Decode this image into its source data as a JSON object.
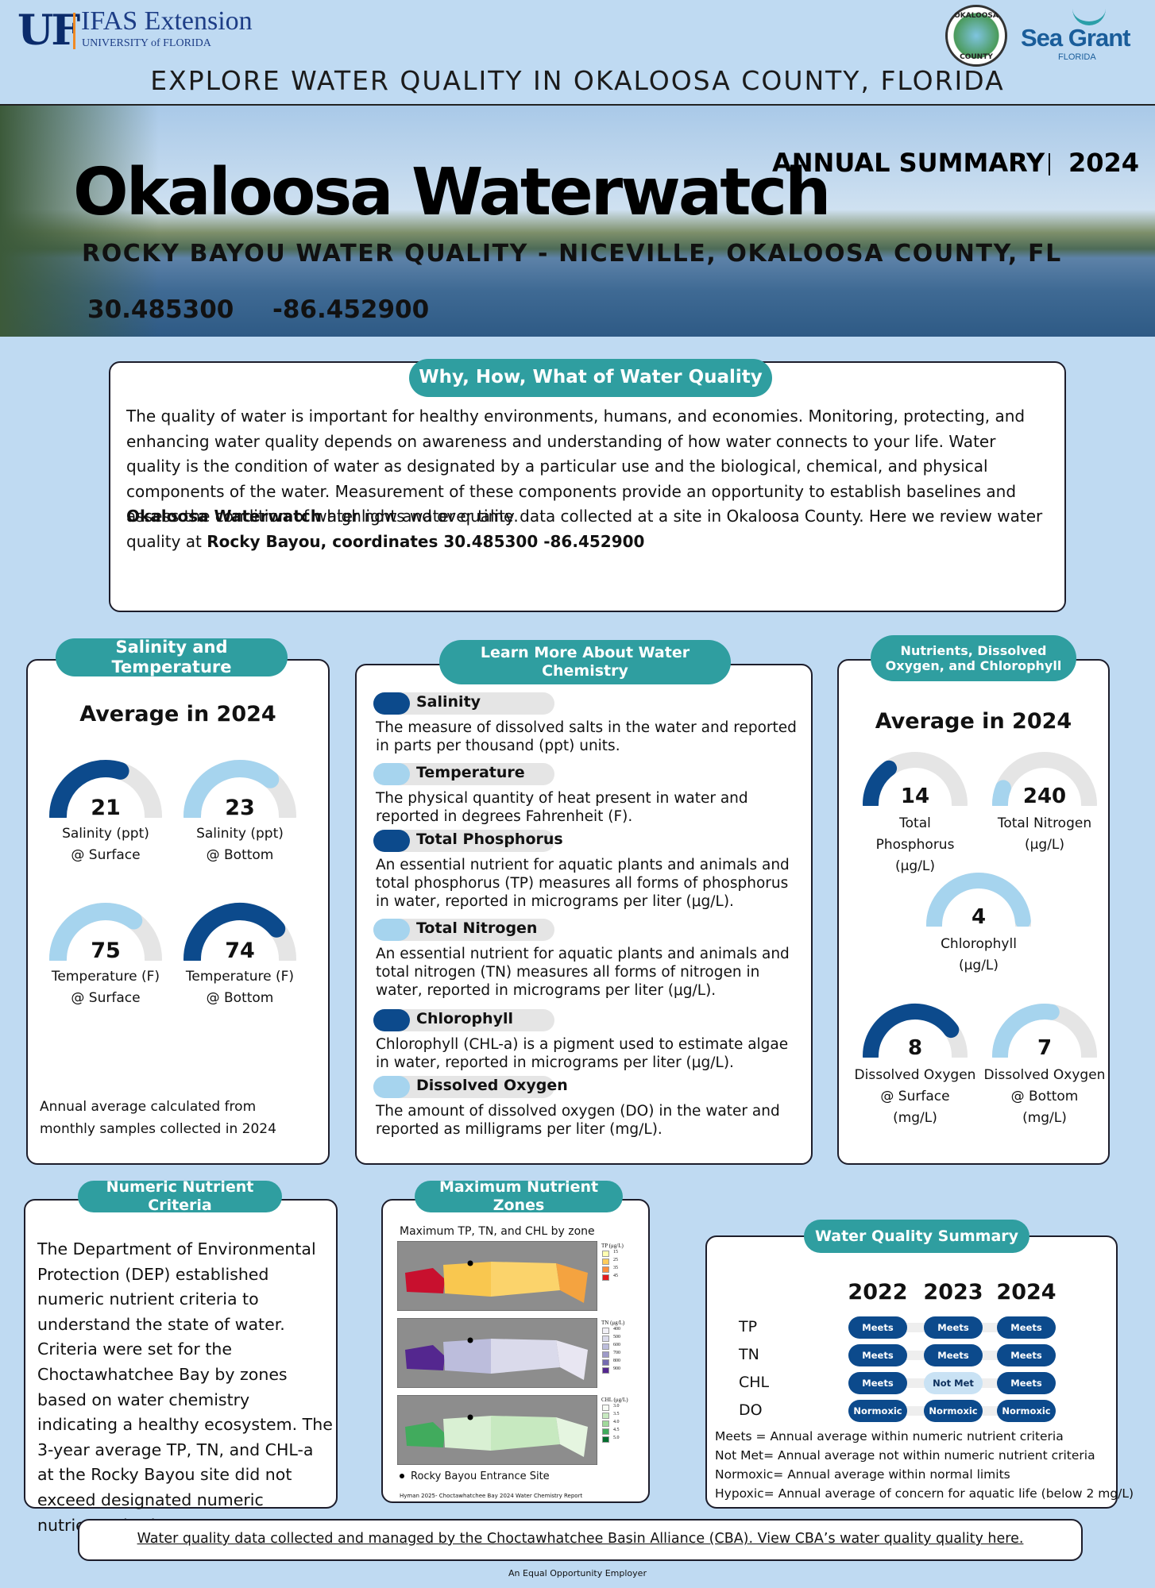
{
  "header": {
    "uf": "UF",
    "ifas": "IFAS Extension",
    "university": "UNIVERSITY of FLORIDA",
    "seal_top": "OKALOOSA",
    "seal_bottom": "COUNTY",
    "seagrant": "Sea Grant",
    "seagrant_sub": "FLORIDA",
    "tagline": "EXPLORE WATER QUALITY IN OKALOOSA COUNTY, FLORIDA"
  },
  "banner": {
    "title": "Okaloosa Waterwatch",
    "summary": "ANNUAL SUMMARY",
    "year": "2024",
    "subtitle": "ROCKY BAYOU WATER QUALITY - NICEVILLE, OKALOOSA COUNTY, FL",
    "latitude": "30.485300",
    "longitude": "-86.452900"
  },
  "intro": {
    "heading": "Why, How, What of Water Quality",
    "paragraph": "The quality of water is important for healthy environments, humans, and economies. Monitoring, protecting, and enhancing water quality depends on awareness and understanding of how water connects to your life. Water quality is the condition of water as designated by a particular use and the biological, chemical, and physical components of the water. Measurement of these components provide an opportunity to establish baselines and assess the condition of water now and over time.",
    "bold1": "Okaloosa Waterwatch",
    "text1": " highlights water quality data collected at a site in Okaloosa County. Here we review water quality at ",
    "bold2": "Rocky Bayou, coordinates 30.485300 -86.452900"
  },
  "salinity": {
    "heading": "Salinity and Temperature",
    "subheading": "Average in 2024",
    "gauges": [
      {
        "value": "21",
        "lines": [
          "Salinity (ppt)",
          "@ Surface"
        ]
      },
      {
        "value": "23",
        "lines": [
          "Salinity (ppt)",
          "@ Bottom"
        ]
      },
      {
        "value": "75",
        "lines": [
          "Temperature (F)",
          "@ Surface"
        ]
      },
      {
        "value": "74",
        "lines": [
          "Temperature (F)",
          "@ Bottom"
        ]
      }
    ],
    "note": "Annual average calculated from monthly samples collected in 2024"
  },
  "chemistry": {
    "heading": "Learn More About Water Chemistry",
    "items": [
      {
        "name": "Salinity",
        "description": "The measure of dissolved salts in the water and reported in parts per thousand (ppt) units."
      },
      {
        "name": "Temperature",
        "description": "The physical quantity of heat present in water and reported in degrees Fahrenheit (F)."
      },
      {
        "name": "Total Phosphorus",
        "description": "An essential nutrient for aquatic plants and animals and total phosphorus (TP) measures all forms of phosphorus in water, reported in micrograms per liter (μg/L)."
      },
      {
        "name": "Total Nitrogen",
        "description": "An essential nutrient for aquatic plants and animals and total nitrogen (TN) measures all forms of nitrogen in water, reported in micrograms per liter (μg/L)."
      },
      {
        "name": "Chlorophyll",
        "description": "Chlorophyll (CHL-a) is a pigment used to estimate algae in water, reported in micrograms per liter (μg/L)."
      },
      {
        "name": "Dissolved Oxygen",
        "description": "The amount of dissolved oxygen (DO) in the water and reported as milligrams per liter (mg/L)."
      }
    ]
  },
  "nutrients": {
    "heading": "Nutrients, Dissolved Oxygen, and Chlorophyll",
    "subheading": "Average in 2024",
    "gauges": [
      {
        "value": "14",
        "lines": [
          "Total",
          "Phosphorus",
          "(μg/L)"
        ]
      },
      {
        "value": "240",
        "lines": [
          "Total Nitrogen",
          "(μg/L)"
        ]
      },
      {
        "value": "4",
        "lines": [
          "Chlorophyll",
          "(μg/L)"
        ]
      },
      {
        "value": "8",
        "lines": [
          "Dissolved Oxygen",
          "@ Surface",
          "(mg/L)"
        ]
      },
      {
        "value": "7",
        "lines": [
          "Dissolved Oxygen",
          "@ Bottom",
          "(mg/L)"
        ]
      }
    ]
  },
  "criteria": {
    "heading": "Numeric Nutrient Criteria",
    "text": "The Department of Environmental Protection (DEP) established numeric nutrient criteria to understand the state of water. Criteria were set for the Choctawhatchee Bay by zones based on water chemistry indicating a healthy ecosystem. The 3-year average TP, TN, and CHL-a at the Rocky Bayou site did not exceed designated numeric nutrient criteria."
  },
  "zones": {
    "heading": "Maximum Nutrient Zones",
    "caption": "Maximum TP, TN, and CHL by zone",
    "maps": [
      {
        "legend": "TP (μg/L)",
        "levels": [
          "15",
          "25",
          "35",
          "45"
        ]
      },
      {
        "legend": "TN (μg/L)",
        "levels": [
          "400",
          "500",
          "600",
          "700",
          "800",
          "900"
        ]
      },
      {
        "legend": "CHL (μg/L)",
        "levels": [
          "3.0",
          "3.5",
          "4.0",
          "4.5",
          "5.0"
        ]
      }
    ],
    "site": "Rocky Bayou Entrance Site",
    "citation": "Hyman 2025- Choctawhatchee Bay 2024 Water Chemistry Report"
  },
  "summary": {
    "heading": "Water Quality Summary",
    "years": [
      "2022",
      "2023",
      "2024"
    ],
    "rows": [
      {
        "param": "TP",
        "statuses": [
          "Meets",
          "Meets",
          "Meets"
        ]
      },
      {
        "param": "TN",
        "statuses": [
          "Meets",
          "Meets",
          "Meets"
        ]
      },
      {
        "param": "CHL",
        "statuses": [
          "Meets",
          "Not Met",
          "Meets"
        ]
      },
      {
        "param": "DO",
        "statuses": [
          "Normoxic",
          "Normoxic",
          "Normoxic"
        ]
      }
    ],
    "legend": [
      "Meets = Annual average within numeric nutrient criteria",
      "Not Met= Annual average not within numeric nutrient criteria",
      "Normoxic= Annual average within normal limits",
      "Hypoxic= Annual average of concern for aquatic life (below 2 mg/L)"
    ]
  },
  "footer": {
    "link": "Water quality data collected and managed by the Choctawhatchee Basin Alliance (CBA). View CBA’s water quality quality here.",
    "employer": "An Equal Opportunity Employer"
  }
}
